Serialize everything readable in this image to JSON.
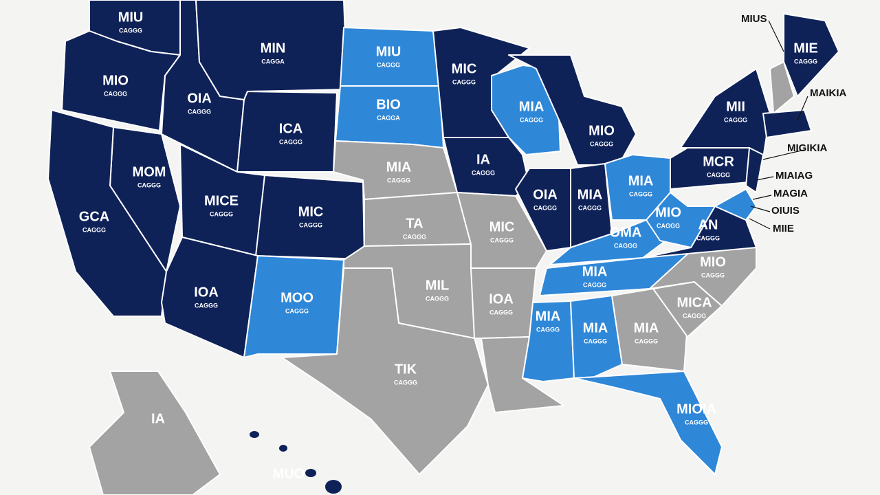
{
  "map": {
    "states": [
      {
        "title": "MIU",
        "subtitle": "CAGGG"
      },
      {
        "title": "MIN",
        "subtitle": "CAGGA"
      },
      {
        "title": "MIU",
        "subtitle": "CAGGG"
      },
      {
        "title": "MIC",
        "subtitle": "CAGGG"
      },
      {
        "title": "MIO",
        "subtitle": "CAGGG"
      },
      {
        "title": "OIA",
        "subtitle": "CAGGG"
      },
      {
        "title": "BIO",
        "subtitle": "CAGGA"
      },
      {
        "title": "ICA",
        "subtitle": "CAGGG"
      },
      {
        "title": "MIA",
        "subtitle": "CAGGG"
      },
      {
        "title": "MIO",
        "subtitle": "CAGGG"
      },
      {
        "title": "MII",
        "subtitle": "CAGGG"
      },
      {
        "title": "MIE",
        "subtitle": "CAGGG"
      },
      {
        "title": "IA",
        "subtitle": "CAGGG"
      },
      {
        "title": "MIA",
        "subtitle": "CAGGG"
      },
      {
        "title": "MOM",
        "subtitle": "CAGGG"
      },
      {
        "title": "MICE",
        "subtitle": "CAGGG"
      },
      {
        "title": "MIC",
        "subtitle": "CAGGG"
      },
      {
        "title": "GCA",
        "subtitle": "CAGGG"
      },
      {
        "title": "OIA",
        "subtitle": "CAGGG"
      },
      {
        "title": "MIA",
        "subtitle": "CAGGG"
      },
      {
        "title": "MIA",
        "subtitle": "CAGGG"
      },
      {
        "title": "MCR",
        "subtitle": "CAGGG"
      },
      {
        "title": "MIO",
        "subtitle": "CAGGG"
      },
      {
        "title": "AN",
        "subtitle": "CAGGG"
      },
      {
        "title": "TA",
        "subtitle": "CAGGG"
      },
      {
        "title": "MIC",
        "subtitle": "CAGGG"
      },
      {
        "title": "OMA",
        "subtitle": "CAGGG"
      },
      {
        "title": "MIA",
        "subtitle": "CAGGG"
      },
      {
        "title": "MIO",
        "subtitle": "CAGGG"
      },
      {
        "title": "IOA",
        "subtitle": "CAGGG"
      },
      {
        "title": "MOO",
        "subtitle": "CAGGG"
      },
      {
        "title": "MIL",
        "subtitle": "CAGGG"
      },
      {
        "title": "IOA",
        "subtitle": "CAGGG"
      },
      {
        "title": "MICA",
        "subtitle": "CAGGG"
      },
      {
        "title": "MIA",
        "subtitle": "CAGGG"
      },
      {
        "title": "MIA",
        "subtitle": "CAGGG"
      },
      {
        "title": "MIA",
        "subtitle": "CAGGG"
      },
      {
        "title": "TIK",
        "subtitle": "CAGGG"
      },
      {
        "title": "MIOIA",
        "subtitle": "CAGGG"
      }
    ],
    "callouts": [
      "MIUS",
      "MAIKIA",
      "MIGIKIA",
      "MIAIAG",
      "MAGIA",
      "OIUIS",
      "MIIE"
    ],
    "alaska_label": "IA",
    "hawaii_label": "MUO"
  }
}
